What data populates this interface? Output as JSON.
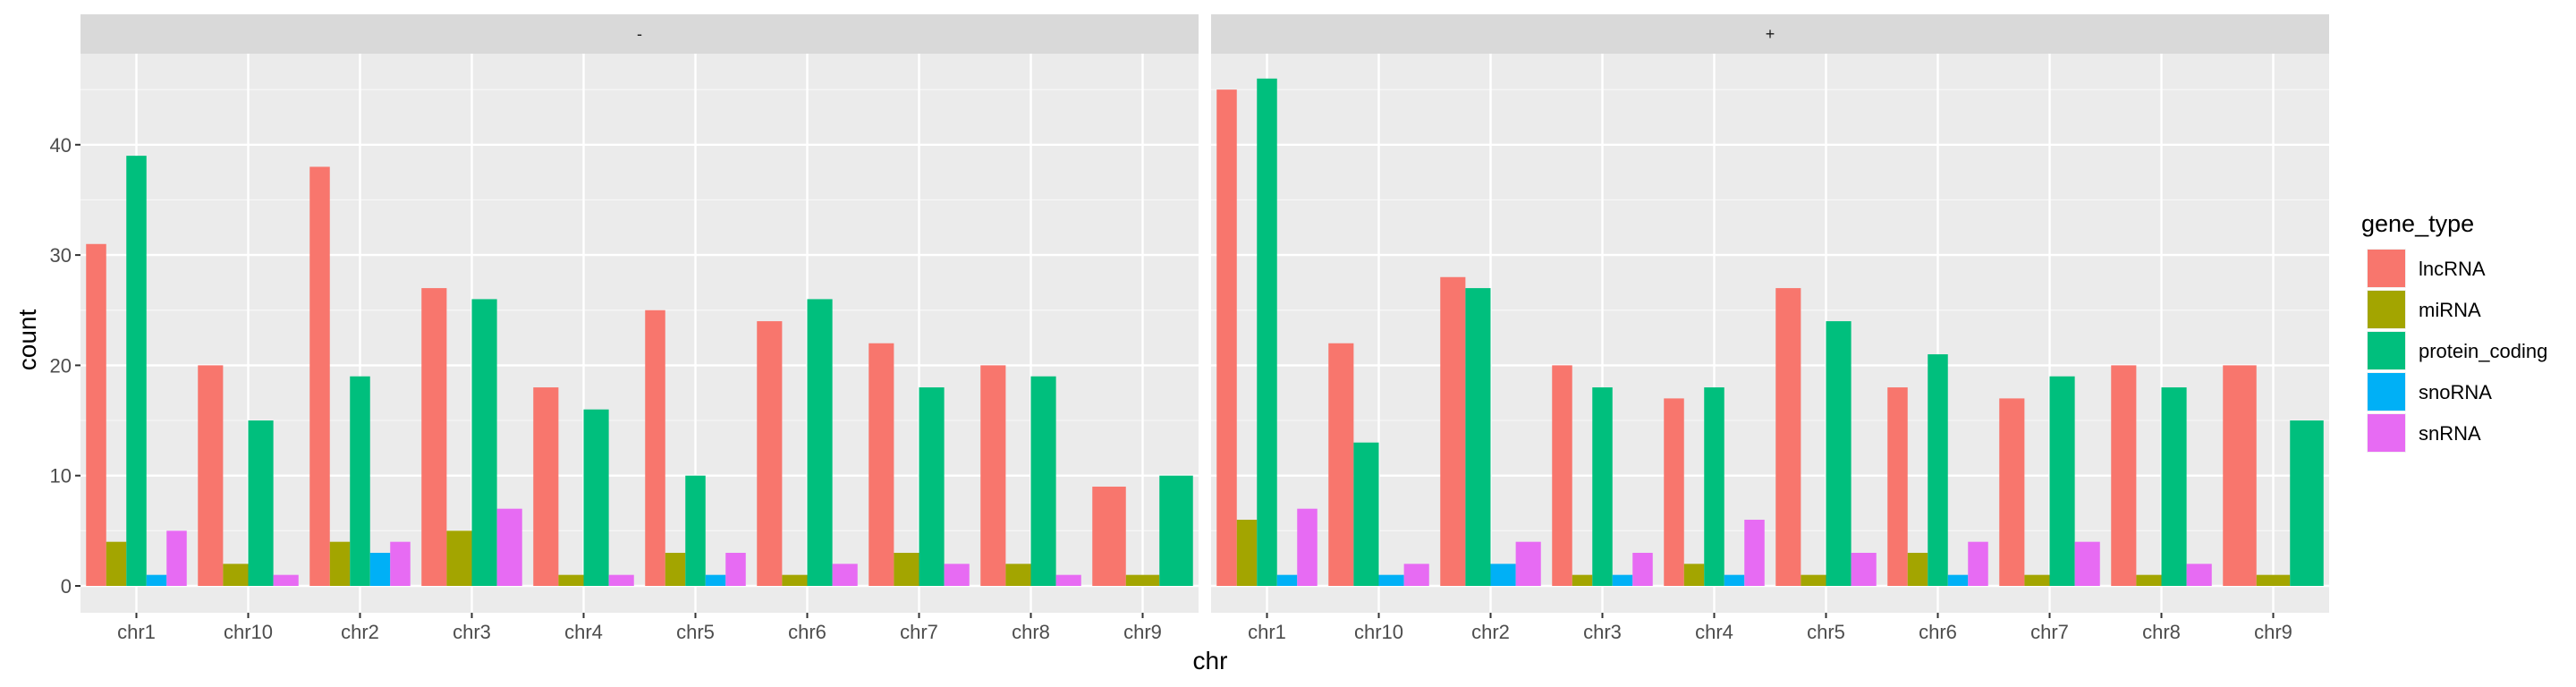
{
  "chart_data": {
    "type": "bar",
    "position": "dodge",
    "xlabel": "chr",
    "ylabel": "count",
    "ylim": [
      0,
      48
    ],
    "yticks": [
      0,
      10,
      20,
      30,
      40
    ],
    "grid": true,
    "legend_position": "right",
    "legend_title": "gene_type",
    "categories": [
      "chr1",
      "chr10",
      "chr2",
      "chr3",
      "chr4",
      "chr5",
      "chr6",
      "chr7",
      "chr8",
      "chr9"
    ],
    "series_info": [
      {
        "name": "lncRNA",
        "color": "#F8766D"
      },
      {
        "name": "miRNA",
        "color": "#A3A500"
      },
      {
        "name": "protein_coding",
        "color": "#00BF7D"
      },
      {
        "name": "snoRNA",
        "color": "#00B0F6"
      },
      {
        "name": "snRNA",
        "color": "#E76BF3"
      }
    ],
    "facets": [
      {
        "label": "-",
        "groups": [
          [
            {
              "s": 0,
              "v": 31
            },
            {
              "s": 1,
              "v": 4
            },
            {
              "s": 2,
              "v": 39
            },
            {
              "s": 3,
              "v": 1
            },
            {
              "s": 4,
              "v": 5
            }
          ],
          [
            {
              "s": 0,
              "v": 20
            },
            {
              "s": 1,
              "v": 2
            },
            {
              "s": 2,
              "v": 15
            },
            {
              "s": 4,
              "v": 1
            }
          ],
          [
            {
              "s": 0,
              "v": 38
            },
            {
              "s": 1,
              "v": 4
            },
            {
              "s": 2,
              "v": 19
            },
            {
              "s": 3,
              "v": 3
            },
            {
              "s": 4,
              "v": 4
            }
          ],
          [
            {
              "s": 0,
              "v": 27
            },
            {
              "s": 1,
              "v": 5
            },
            {
              "s": 2,
              "v": 26
            },
            {
              "s": 4,
              "v": 7
            }
          ],
          [
            {
              "s": 0,
              "v": 18
            },
            {
              "s": 1,
              "v": 1
            },
            {
              "s": 2,
              "v": 16
            },
            {
              "s": 4,
              "v": 1
            }
          ],
          [
            {
              "s": 0,
              "v": 25
            },
            {
              "s": 1,
              "v": 3
            },
            {
              "s": 2,
              "v": 10
            },
            {
              "s": 3,
              "v": 1
            },
            {
              "s": 4,
              "v": 3
            }
          ],
          [
            {
              "s": 0,
              "v": 24
            },
            {
              "s": 1,
              "v": 1
            },
            {
              "s": 2,
              "v": 26
            },
            {
              "s": 4,
              "v": 2
            }
          ],
          [
            {
              "s": 0,
              "v": 22
            },
            {
              "s": 1,
              "v": 3
            },
            {
              "s": 2,
              "v": 18
            },
            {
              "s": 4,
              "v": 2
            }
          ],
          [
            {
              "s": 0,
              "v": 20
            },
            {
              "s": 1,
              "v": 2
            },
            {
              "s": 2,
              "v": 19
            },
            {
              "s": 4,
              "v": 1
            }
          ],
          [
            {
              "s": 0,
              "v": 9
            },
            {
              "s": 1,
              "v": 1
            },
            {
              "s": 2,
              "v": 10
            }
          ]
        ]
      },
      {
        "label": "+",
        "groups": [
          [
            {
              "s": 0,
              "v": 45
            },
            {
              "s": 1,
              "v": 6
            },
            {
              "s": 2,
              "v": 46
            },
            {
              "s": 3,
              "v": 1
            },
            {
              "s": 4,
              "v": 7
            }
          ],
          [
            {
              "s": 0,
              "v": 22
            },
            {
              "s": 2,
              "v": 13
            },
            {
              "s": 3,
              "v": 1
            },
            {
              "s": 4,
              "v": 2
            }
          ],
          [
            {
              "s": 0,
              "v": 28
            },
            {
              "s": 2,
              "v": 27
            },
            {
              "s": 3,
              "v": 2
            },
            {
              "s": 4,
              "v": 4
            }
          ],
          [
            {
              "s": 0,
              "v": 20
            },
            {
              "s": 1,
              "v": 1
            },
            {
              "s": 2,
              "v": 18
            },
            {
              "s": 3,
              "v": 1
            },
            {
              "s": 4,
              "v": 3
            }
          ],
          [
            {
              "s": 0,
              "v": 17
            },
            {
              "s": 1,
              "v": 2
            },
            {
              "s": 2,
              "v": 18
            },
            {
              "s": 3,
              "v": 1
            },
            {
              "s": 4,
              "v": 6
            }
          ],
          [
            {
              "s": 0,
              "v": 27
            },
            {
              "s": 1,
              "v": 1
            },
            {
              "s": 2,
              "v": 24
            },
            {
              "s": 4,
              "v": 3
            }
          ],
          [
            {
              "s": 0,
              "v": 18
            },
            {
              "s": 1,
              "v": 3
            },
            {
              "s": 2,
              "v": 21
            },
            {
              "s": 3,
              "v": 1
            },
            {
              "s": 4,
              "v": 4
            }
          ],
          [
            {
              "s": 0,
              "v": 17
            },
            {
              "s": 1,
              "v": 1
            },
            {
              "s": 2,
              "v": 19
            },
            {
              "s": 4,
              "v": 4
            }
          ],
          [
            {
              "s": 0,
              "v": 20
            },
            {
              "s": 1,
              "v": 1
            },
            {
              "s": 2,
              "v": 18
            },
            {
              "s": 4,
              "v": 2
            }
          ],
          [
            {
              "s": 0,
              "v": 20
            },
            {
              "s": 1,
              "v": 1
            },
            {
              "s": 2,
              "v": 15
            }
          ]
        ]
      }
    ]
  }
}
